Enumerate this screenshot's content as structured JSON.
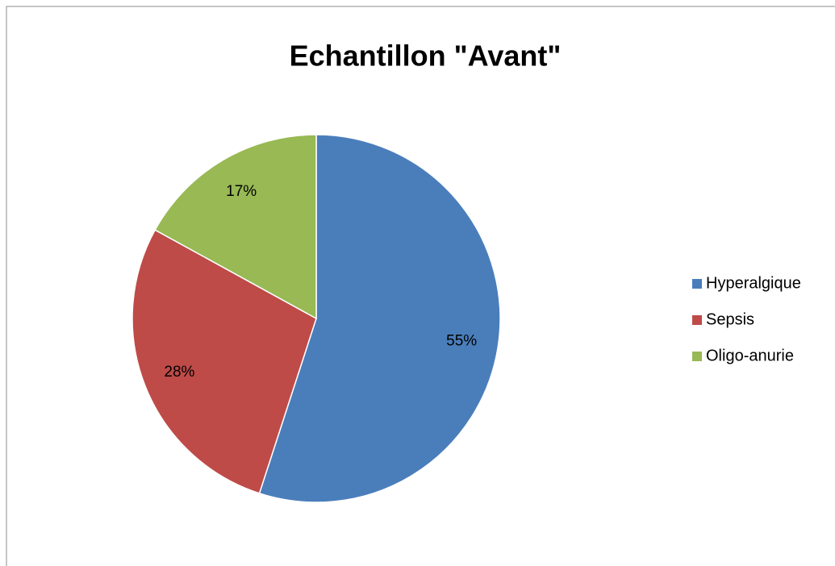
{
  "chart_data": {
    "type": "pie",
    "title": "Echantillon \"Avant\"",
    "categories": [
      "Hyperalgique",
      "Sepsis",
      "Oligo-anurie"
    ],
    "values": [
      55,
      28,
      17
    ],
    "value_labels": [
      "55%",
      "28%",
      "17%"
    ],
    "colors": [
      "#4a7ebb",
      "#be4b48",
      "#98b954"
    ],
    "legend": "right"
  }
}
